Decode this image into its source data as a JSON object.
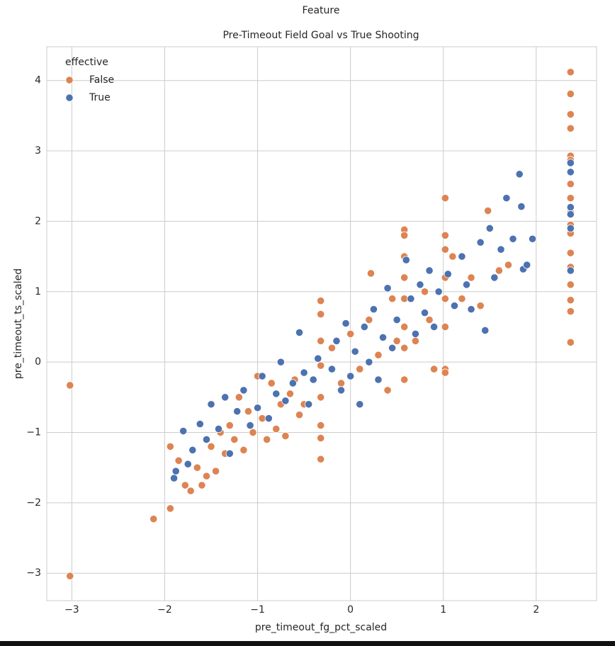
{
  "chart_data": {
    "type": "scatter",
    "suptitle": "Feature",
    "title": "Pre-Timeout Field Goal vs True Shooting",
    "xlabel": "pre_timeout_fg_pct_scaled",
    "ylabel": "pre_timeout_ts_scaled",
    "legend_title": "effective",
    "legend": "upper left",
    "grid": true,
    "xlim": [
      -3.27,
      2.65
    ],
    "ylim": [
      -3.39,
      4.48
    ],
    "xticks": [
      {
        "value": -3,
        "label": "−3"
      },
      {
        "value": -2,
        "label": "−2"
      },
      {
        "value": -1,
        "label": "−1"
      },
      0,
      1,
      2
    ],
    "yticks": [
      {
        "value": -3,
        "label": "−3"
      },
      {
        "value": -2,
        "label": "−2"
      },
      {
        "value": -1,
        "label": "−1"
      },
      0,
      1,
      2,
      3,
      4
    ],
    "series": [
      {
        "name": "False",
        "color": "#dd8452",
        "x": [
          -3.02,
          -3.02,
          -2.12,
          -1.94,
          -1.94,
          -1.85,
          -1.78,
          -1.72,
          -1.65,
          -1.6,
          -1.55,
          -1.5,
          -1.45,
          -1.4,
          -1.35,
          -1.3,
          -1.25,
          -1.2,
          -1.15,
          -1.1,
          -1.05,
          -1.0,
          -0.95,
          -0.9,
          -0.85,
          -0.8,
          -0.75,
          -0.7,
          -0.65,
          -0.6,
          -0.55,
          -0.5,
          -0.32,
          -0.32,
          -0.32,
          -0.32,
          -0.32,
          -0.32,
          -0.32,
          -0.32,
          -0.2,
          -0.1,
          0.0,
          0.1,
          0.2,
          0.22,
          0.3,
          0.4,
          0.45,
          0.5,
          0.58,
          0.58,
          0.58,
          0.58,
          0.58,
          0.58,
          0.58,
          0.58,
          0.7,
          0.8,
          0.85,
          0.9,
          1.02,
          1.02,
          1.02,
          1.02,
          1.02,
          1.02,
          1.02,
          1.02,
          1.1,
          1.2,
          1.3,
          1.4,
          1.48,
          1.6,
          1.7,
          2.37,
          2.37,
          2.37,
          2.37,
          2.37,
          2.37,
          2.37,
          2.37,
          2.37,
          2.37,
          2.37,
          2.37,
          2.37,
          2.37,
          2.37,
          2.37,
          2.37
        ],
        "values": [
          -0.33,
          -3.04,
          -2.23,
          -2.08,
          -1.2,
          -1.4,
          -1.75,
          -1.83,
          -1.5,
          -1.75,
          -1.62,
          -1.2,
          -1.55,
          -1.0,
          -1.3,
          -0.9,
          -1.1,
          -0.5,
          -1.25,
          -0.7,
          -1.0,
          -0.2,
          -0.8,
          -1.1,
          -0.3,
          -0.95,
          -0.6,
          -1.05,
          -0.45,
          -0.25,
          -0.75,
          -0.6,
          0.87,
          0.68,
          0.3,
          -0.05,
          -0.5,
          -0.9,
          -1.08,
          -1.38,
          0.2,
          -0.3,
          0.4,
          -0.1,
          0.6,
          1.26,
          0.1,
          -0.4,
          0.9,
          0.3,
          1.88,
          1.8,
          1.5,
          1.2,
          0.9,
          0.5,
          0.2,
          -0.25,
          0.3,
          1.0,
          0.6,
          -0.1,
          2.33,
          1.8,
          1.6,
          1.2,
          0.9,
          0.5,
          -0.1,
          -0.15,
          1.5,
          0.9,
          1.2,
          0.8,
          2.15,
          1.3,
          1.38,
          4.12,
          3.81,
          3.52,
          3.32,
          2.93,
          2.87,
          2.53,
          2.33,
          2.13,
          1.95,
          1.83,
          1.55,
          1.35,
          1.1,
          0.88,
          0.72,
          0.28
        ]
      },
      {
        "name": "True",
        "color": "#4c72b0",
        "x": [
          -1.9,
          -1.88,
          -1.8,
          -1.75,
          -1.7,
          -1.62,
          -1.55,
          -1.5,
          -1.42,
          -1.35,
          -1.3,
          -1.22,
          -1.15,
          -1.08,
          -1.0,
          -0.95,
          -0.88,
          -0.8,
          -0.75,
          -0.7,
          -0.62,
          -0.55,
          -0.5,
          -0.45,
          -0.4,
          -0.35,
          -0.2,
          -0.15,
          -0.1,
          -0.05,
          0.0,
          0.05,
          0.1,
          0.15,
          0.2,
          0.25,
          0.3,
          0.35,
          0.4,
          0.45,
          0.5,
          0.6,
          0.65,
          0.7,
          0.75,
          0.8,
          0.85,
          0.9,
          0.95,
          1.05,
          1.12,
          1.2,
          1.25,
          1.3,
          1.4,
          1.45,
          1.5,
          1.55,
          1.62,
          1.68,
          1.75,
          1.82,
          1.84,
          1.86,
          1.9,
          1.96,
          2.37,
          2.37,
          2.37,
          2.37,
          2.37,
          2.37
        ],
        "values": [
          -1.65,
          -1.55,
          -0.98,
          -1.45,
          -1.25,
          -0.88,
          -1.1,
          -0.6,
          -0.95,
          -0.5,
          -1.3,
          -0.7,
          -0.4,
          -0.9,
          -0.65,
          -0.2,
          -0.8,
          -0.45,
          0.0,
          -0.55,
          -0.3,
          0.42,
          -0.15,
          -0.6,
          -0.25,
          0.05,
          -0.1,
          0.3,
          -0.4,
          0.55,
          -0.2,
          0.15,
          -0.6,
          0.5,
          0.0,
          0.75,
          -0.25,
          0.35,
          1.05,
          0.2,
          0.6,
          1.45,
          0.9,
          0.4,
          1.1,
          0.7,
          1.3,
          0.5,
          1.0,
          1.25,
          0.8,
          1.5,
          1.1,
          0.75,
          1.7,
          0.45,
          1.9,
          1.2,
          1.6,
          2.33,
          1.75,
          2.67,
          2.21,
          1.32,
          1.38,
          1.75,
          2.83,
          2.7,
          2.2,
          2.1,
          1.9,
          1.3
        ]
      }
    ]
  }
}
